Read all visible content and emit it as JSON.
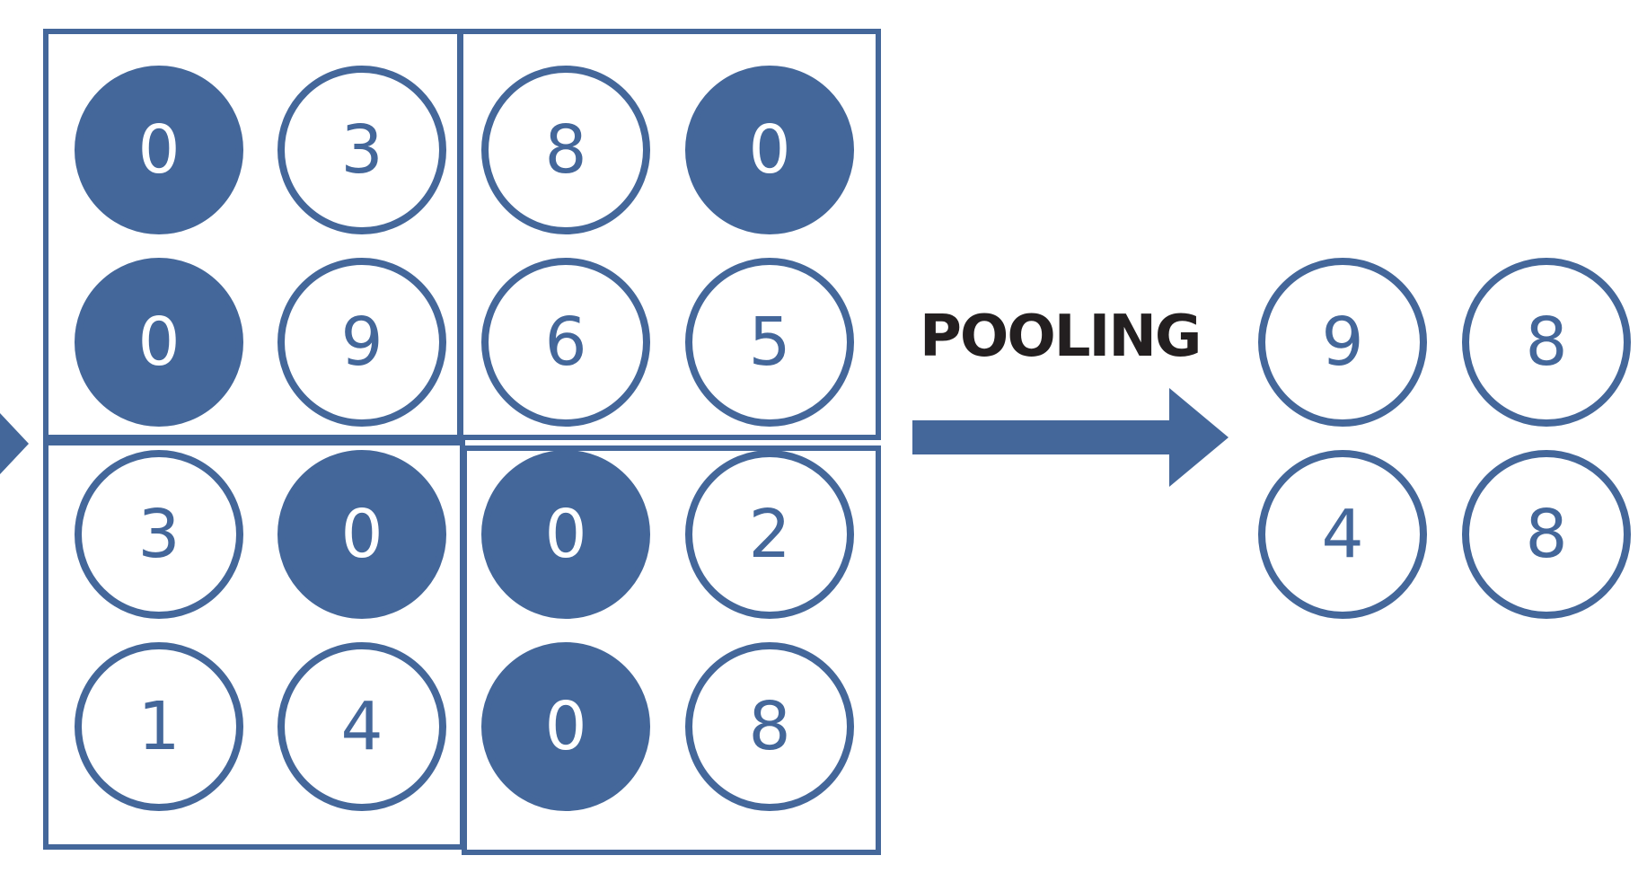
{
  "colors": {
    "accent": "#44679a",
    "label": "#231f20",
    "background": "#ffffff"
  },
  "input_grid": {
    "rows": [
      [
        {
          "value": "0",
          "filled": true
        },
        {
          "value": "3",
          "filled": false
        },
        {
          "value": "8",
          "filled": false
        },
        {
          "value": "0",
          "filled": true
        }
      ],
      [
        {
          "value": "0",
          "filled": true
        },
        {
          "value": "9",
          "filled": false
        },
        {
          "value": "6",
          "filled": false
        },
        {
          "value": "5",
          "filled": false
        }
      ],
      [
        {
          "value": "3",
          "filled": false
        },
        {
          "value": "0",
          "filled": true
        },
        {
          "value": "0",
          "filled": true
        },
        {
          "value": "2",
          "filled": false
        }
      ],
      [
        {
          "value": "1",
          "filled": false
        },
        {
          "value": "4",
          "filled": false
        },
        {
          "value": "0",
          "filled": true
        },
        {
          "value": "8",
          "filled": false
        }
      ]
    ]
  },
  "operation": {
    "label": "POOLING"
  },
  "output_grid": {
    "rows": [
      [
        {
          "value": "9",
          "filled": false
        },
        {
          "value": "8",
          "filled": false
        }
      ],
      [
        {
          "value": "4",
          "filled": false
        },
        {
          "value": "8",
          "filled": false
        }
      ]
    ]
  }
}
